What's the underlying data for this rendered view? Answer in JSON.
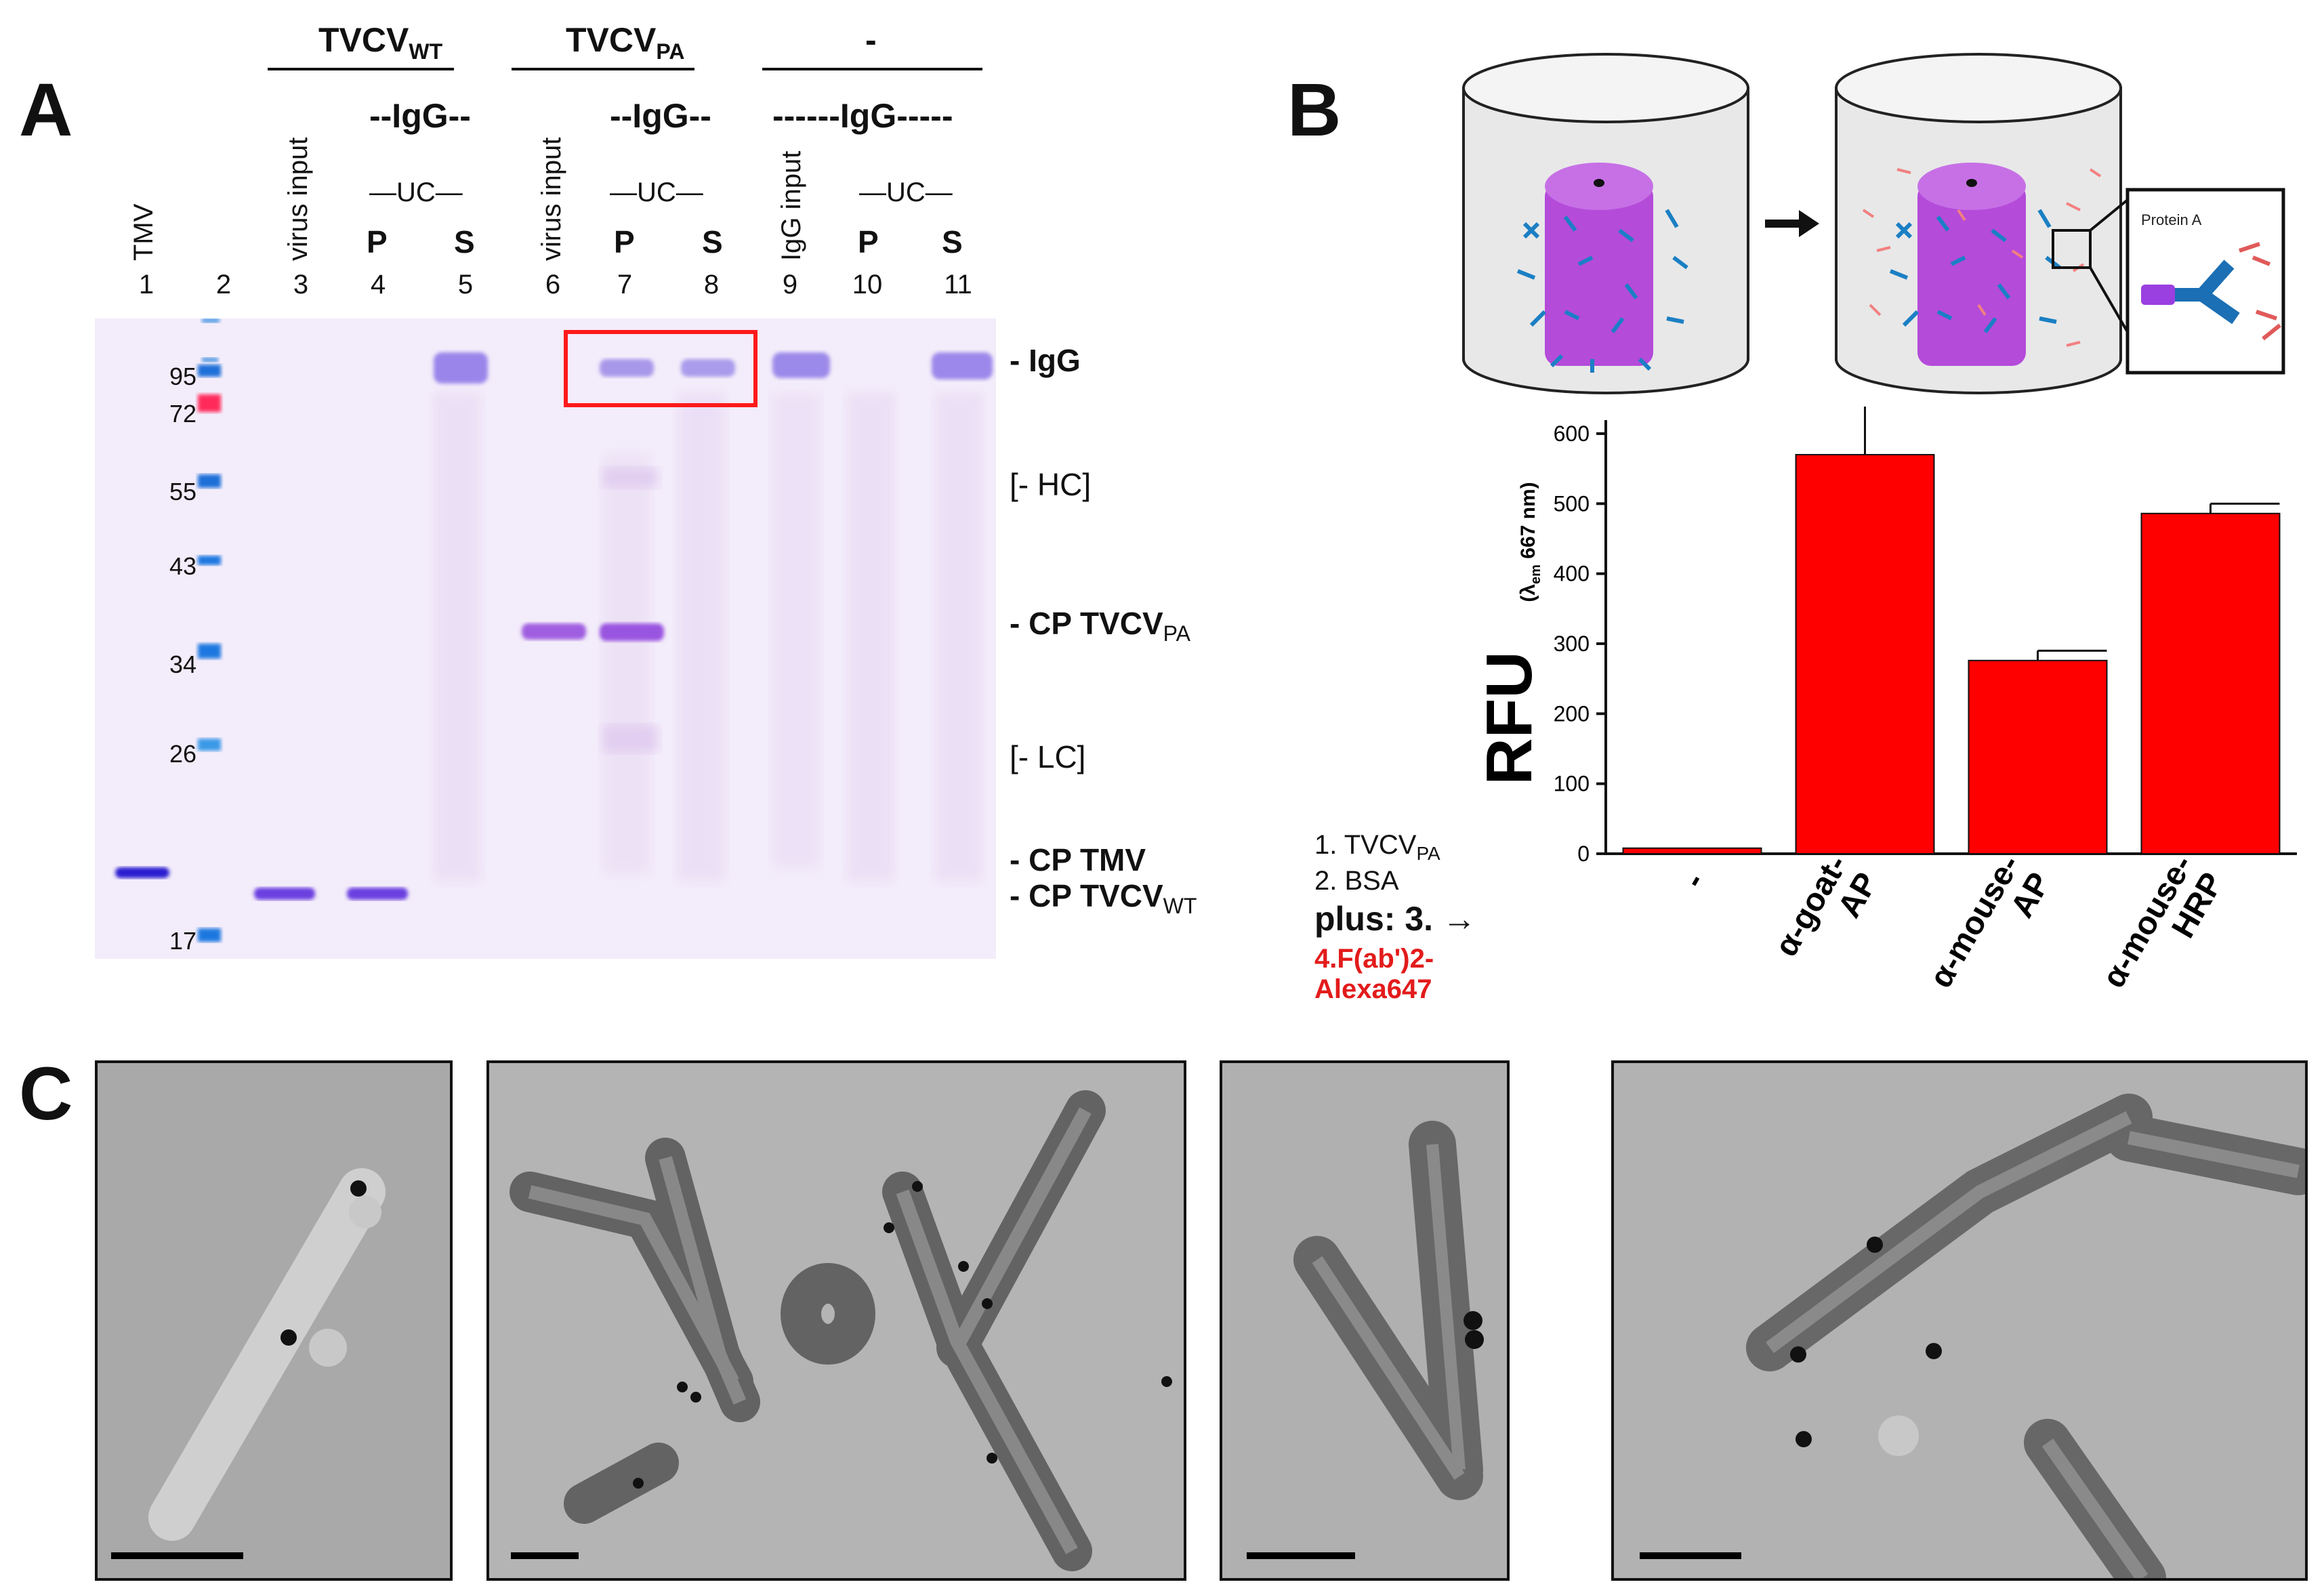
{
  "panel_a": {
    "letter": "A",
    "groups": [
      {
        "label_main": "TVCV",
        "label_sub": "WT"
      },
      {
        "label_main": "TVCV",
        "label_sub": "PA"
      },
      {
        "label_main": "-",
        "label_sub": ""
      }
    ],
    "igg_headers": [
      "--IgG--",
      "--IgG--",
      "------IgG-----"
    ],
    "uc_headers": [
      "—UC—",
      "—UC—",
      "—UC—"
    ],
    "rotated_headers": [
      "TMV",
      "virus input",
      "virus input",
      "IgG input"
    ],
    "ps_labels": [
      "P",
      "S",
      "P",
      "S",
      "P",
      "S"
    ],
    "lane_numbers": [
      "1",
      "2",
      "3",
      "4",
      "5",
      "6",
      "7",
      "8",
      "9",
      "10",
      "11"
    ],
    "mw_markers": [
      "95",
      "72",
      "55",
      "43",
      "34",
      "26",
      "17"
    ],
    "band_labels": {
      "igg": "- IgG",
      "hc": "[- HC]",
      "cp_tvcv_pa_main": "- CP  TVCV",
      "cp_tvcv_pa_sub": "PA",
      "lc": "[- LC]",
      "cp_tmv": "- CP  TMV",
      "cp_tvcv_wt_main": "- CP  TVCV",
      "cp_tvcv_wt_sub": "WT"
    }
  },
  "panel_b": {
    "letter": "B",
    "inset_label": "Protein A",
    "legend": {
      "line1_main": "1. TVCV",
      "line1_sub": "PA",
      "line2": "2. BSA",
      "line3": "plus: 3. →",
      "line4": "4.F(ab')2-",
      "line5": "Alexa647"
    },
    "colors": {
      "bar": "#ff0000",
      "legend_red": "#e31b1b",
      "igg_blue": "#1b7fc4",
      "virus_purple": "#b44bd9"
    }
  },
  "chart_data": {
    "type": "bar",
    "ylabel": "RFU",
    "ylabel_sub_prefix": "(λ",
    "ylabel_sub_subscript": "em",
    "ylabel_sub_suffix": " 667 nm)",
    "ylim": [
      0,
      600
    ],
    "yticks": [
      "0",
      "100",
      "200",
      "300",
      "400",
      "500",
      "600"
    ],
    "categories": [
      "-",
      "α-goat-\nAP",
      "α-mouse-\nAP",
      "α-mouse-\nHRP"
    ],
    "values": [
      8,
      570,
      276,
      486
    ],
    "errors": [
      0,
      75,
      14,
      14
    ],
    "grid": false
  },
  "panel_c": {
    "letter": "C"
  }
}
